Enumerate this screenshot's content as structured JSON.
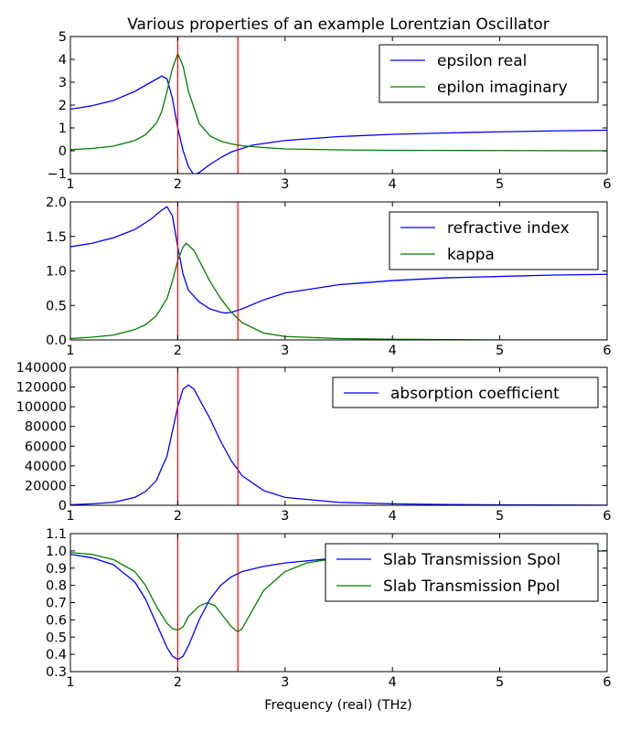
{
  "figure": {
    "title": "Various properties of an example Lorentzian Oscillator",
    "xlabel": "Frequency (real) (THz)"
  },
  "colors": {
    "blue": "#0000ff",
    "green": "#007f00",
    "red": "#ff0000",
    "axes": "#000000"
  },
  "chart_data": [
    {
      "type": "line",
      "title": "Various properties of an example Lorentzian Oscillator",
      "xlim": [
        1,
        6
      ],
      "ylim": [
        -1,
        5
      ],
      "xticks": [
        "1",
        "2",
        "3",
        "4",
        "5",
        "6"
      ],
      "yticks": [
        "−1",
        "0",
        "1",
        "2",
        "3",
        "4",
        "5"
      ],
      "vlines": [
        2.0,
        2.56
      ],
      "legend_position": "top-right",
      "series": [
        {
          "name": "epsilon real",
          "color": "#0000ff",
          "x": [
            1.0,
            1.2,
            1.4,
            1.6,
            1.75,
            1.85,
            1.9,
            1.95,
            2.0,
            2.05,
            2.1,
            2.15,
            2.2,
            2.3,
            2.4,
            2.5,
            2.7,
            3.0,
            3.5,
            4.0,
            4.5,
            5.0,
            5.5,
            6.0
          ],
          "y": [
            1.82,
            1.97,
            2.2,
            2.6,
            3.0,
            3.27,
            3.15,
            2.3,
            1.0,
            0.0,
            -0.7,
            -1.05,
            -0.95,
            -0.6,
            -0.3,
            -0.05,
            0.25,
            0.45,
            0.62,
            0.72,
            0.78,
            0.83,
            0.87,
            0.9
          ]
        },
        {
          "name": "epilon imaginary",
          "color": "#007f00",
          "x": [
            1.0,
            1.2,
            1.4,
            1.6,
            1.7,
            1.8,
            1.85,
            1.9,
            1.95,
            2.0,
            2.05,
            2.1,
            2.2,
            2.3,
            2.4,
            2.5,
            2.6,
            2.8,
            3.0,
            3.5,
            4.0,
            5.0,
            6.0
          ],
          "y": [
            0.05,
            0.1,
            0.2,
            0.45,
            0.7,
            1.2,
            1.7,
            2.6,
            3.6,
            4.25,
            3.7,
            2.6,
            1.2,
            0.65,
            0.42,
            0.3,
            0.22,
            0.14,
            0.08,
            0.04,
            0.02,
            0.01,
            0.0
          ]
        }
      ]
    },
    {
      "type": "line",
      "title": "",
      "xlim": [
        1,
        6
      ],
      "ylim": [
        0,
        2
      ],
      "xticks": [
        "1",
        "2",
        "3",
        "4",
        "5",
        "6"
      ],
      "yticks": [
        "0.0",
        "0.5",
        "1.0",
        "1.5",
        "2.0"
      ],
      "vlines": [
        2.0,
        2.56
      ],
      "legend_position": "top-right",
      "series": [
        {
          "name": "refractive index",
          "color": "#0000ff",
          "x": [
            1.0,
            1.2,
            1.4,
            1.6,
            1.75,
            1.85,
            1.9,
            1.95,
            2.0,
            2.05,
            2.1,
            2.2,
            2.3,
            2.4,
            2.45,
            2.5,
            2.6,
            2.8,
            3.0,
            3.5,
            4.0,
            4.5,
            5.0,
            5.5,
            6.0
          ],
          "y": [
            1.35,
            1.4,
            1.48,
            1.6,
            1.75,
            1.88,
            1.93,
            1.8,
            1.35,
            0.95,
            0.72,
            0.55,
            0.45,
            0.4,
            0.39,
            0.4,
            0.45,
            0.58,
            0.68,
            0.8,
            0.86,
            0.9,
            0.92,
            0.94,
            0.95
          ]
        },
        {
          "name": "kappa",
          "color": "#007f00",
          "x": [
            1.0,
            1.2,
            1.4,
            1.6,
            1.7,
            1.8,
            1.9,
            1.95,
            2.0,
            2.05,
            2.08,
            2.15,
            2.2,
            2.3,
            2.4,
            2.5,
            2.6,
            2.8,
            3.0,
            3.5,
            4.0,
            5.0,
            6.0
          ],
          "y": [
            0.02,
            0.04,
            0.07,
            0.15,
            0.22,
            0.35,
            0.6,
            0.85,
            1.15,
            1.35,
            1.4,
            1.3,
            1.15,
            0.85,
            0.6,
            0.4,
            0.25,
            0.1,
            0.05,
            0.02,
            0.01,
            0.0,
            0.0
          ]
        }
      ]
    },
    {
      "type": "line",
      "title": "",
      "xlim": [
        1,
        6
      ],
      "ylim": [
        0,
        140000
      ],
      "xticks": [
        "1",
        "2",
        "3",
        "4",
        "5",
        "6"
      ],
      "yticks": [
        "0",
        "20000",
        "40000",
        "60000",
        "80000",
        "100000",
        "120000",
        "140000"
      ],
      "vlines": [
        2.0,
        2.56
      ],
      "legend_position": "top-right",
      "series": [
        {
          "name": "absorption coefficient",
          "color": "#0000ff",
          "x": [
            1.0,
            1.2,
            1.4,
            1.6,
            1.7,
            1.8,
            1.9,
            1.95,
            2.0,
            2.05,
            2.1,
            2.15,
            2.2,
            2.3,
            2.4,
            2.5,
            2.6,
            2.8,
            3.0,
            3.5,
            4.0,
            4.5,
            5.0,
            6.0
          ],
          "y": [
            500,
            1500,
            3000,
            8000,
            14000,
            25000,
            50000,
            75000,
            100000,
            118000,
            122000,
            118000,
            108000,
            88000,
            65000,
            45000,
            30000,
            15000,
            8000,
            3000,
            1500,
            800,
            400,
            100
          ]
        }
      ]
    },
    {
      "type": "line",
      "title": "",
      "xlim": [
        1,
        6
      ],
      "ylim": [
        0.3,
        1.1
      ],
      "xticks": [
        "1",
        "2",
        "3",
        "4",
        "5",
        "6"
      ],
      "yticks": [
        "0.3",
        "0.4",
        "0.5",
        "0.6",
        "0.7",
        "0.8",
        "0.9",
        "1.0",
        "1.1"
      ],
      "vlines": [
        2.0,
        2.56
      ],
      "legend_position": "top-right",
      "xlabel": "Frequency (real) (THz)",
      "series": [
        {
          "name": "Slab Transmission Spol",
          "color": "#0000ff",
          "x": [
            1.0,
            1.2,
            1.4,
            1.6,
            1.7,
            1.8,
            1.9,
            1.95,
            2.0,
            2.05,
            2.1,
            2.2,
            2.3,
            2.4,
            2.5,
            2.6,
            2.8,
            3.0,
            3.5,
            4.0,
            5.0,
            6.0
          ],
          "y": [
            0.98,
            0.96,
            0.92,
            0.82,
            0.72,
            0.58,
            0.44,
            0.39,
            0.37,
            0.39,
            0.45,
            0.6,
            0.72,
            0.8,
            0.85,
            0.88,
            0.91,
            0.93,
            0.96,
            0.98,
            0.99,
            1.0
          ]
        },
        {
          "name": "Slab Transmission Ppol",
          "color": "#007f00",
          "x": [
            1.0,
            1.2,
            1.4,
            1.6,
            1.7,
            1.8,
            1.9,
            1.95,
            2.0,
            2.05,
            2.1,
            2.2,
            2.28,
            2.35,
            2.45,
            2.5,
            2.56,
            2.6,
            2.7,
            2.8,
            3.0,
            3.2,
            3.5,
            4.0,
            5.0,
            6.0
          ],
          "y": [
            0.99,
            0.98,
            0.95,
            0.88,
            0.8,
            0.68,
            0.58,
            0.55,
            0.54,
            0.56,
            0.62,
            0.68,
            0.7,
            0.68,
            0.6,
            0.56,
            0.53,
            0.55,
            0.66,
            0.77,
            0.88,
            0.93,
            0.96,
            0.98,
            0.99,
            1.0
          ]
        }
      ]
    }
  ]
}
